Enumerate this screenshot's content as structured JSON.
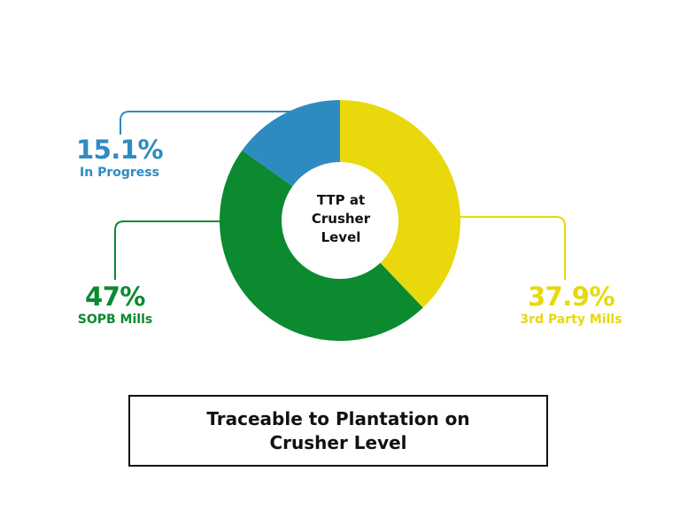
{
  "chart_data": {
    "type": "pie",
    "donut": true,
    "center_label": "TTP at Crusher Level",
    "title": "Traceable to Plantation on Crusher Level",
    "slices": [
      {
        "label": "3rd Party Mills",
        "value": 37.9,
        "value_label": "37.9%",
        "color": "#e8d80c"
      },
      {
        "label": "SOPB Mills",
        "value": 47,
        "value_label": "47%",
        "color": "#0b8a2f"
      },
      {
        "label": "In Progress",
        "value": 15.1,
        "value_label": "15.1%",
        "color": "#2e8bc0"
      }
    ],
    "start_angle_deg": 0,
    "direction": "clockwise"
  }
}
